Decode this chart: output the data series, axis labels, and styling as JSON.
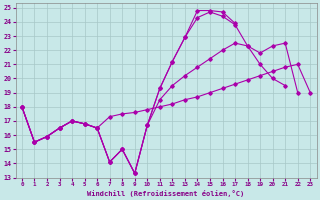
{
  "xlabel": "Windchill (Refroidissement éolien,°C)",
  "xlim": [
    -0.5,
    23.5
  ],
  "ylim": [
    13,
    25.3
  ],
  "xticks": [
    0,
    1,
    2,
    3,
    4,
    5,
    6,
    7,
    8,
    9,
    10,
    11,
    12,
    13,
    14,
    15,
    16,
    17,
    18,
    19,
    20,
    21,
    22,
    23
  ],
  "yticks": [
    13,
    14,
    15,
    16,
    17,
    18,
    19,
    20,
    21,
    22,
    23,
    24,
    25
  ],
  "bg_color": "#c8e8e8",
  "line_color": "#aa00aa",
  "grid_color": "#a8c8c8",
  "line1_y": [
    18.0,
    15.5,
    15.9,
    16.5,
    17.0,
    16.8,
    16.5,
    14.1,
    15.0,
    13.3,
    16.7,
    19.3,
    21.2,
    22.9,
    24.8,
    24.8,
    24.7,
    23.9,
    null,
    null,
    null,
    null,
    null,
    null
  ],
  "line2_y": [
    18.0,
    15.5,
    15.9,
    16.5,
    17.0,
    16.8,
    16.5,
    14.1,
    15.0,
    13.3,
    16.7,
    19.3,
    21.2,
    22.9,
    24.3,
    24.7,
    24.4,
    23.8,
    22.3,
    21.0,
    20.0,
    19.5,
    null,
    null
  ],
  "line3_y": [
    18.0,
    15.5,
    15.9,
    16.5,
    17.0,
    16.8,
    16.5,
    14.1,
    15.0,
    13.3,
    16.7,
    18.5,
    19.5,
    20.2,
    20.8,
    21.4,
    22.0,
    22.5,
    22.3,
    21.8,
    22.3,
    22.5,
    19.0,
    null
  ],
  "line4_y": [
    18.0,
    15.5,
    15.9,
    16.5,
    17.0,
    16.8,
    16.5,
    17.3,
    17.5,
    17.6,
    17.8,
    18.0,
    18.2,
    18.5,
    18.7,
    19.0,
    19.3,
    19.6,
    19.9,
    20.2,
    20.5,
    20.8,
    21.0,
    19.0
  ]
}
